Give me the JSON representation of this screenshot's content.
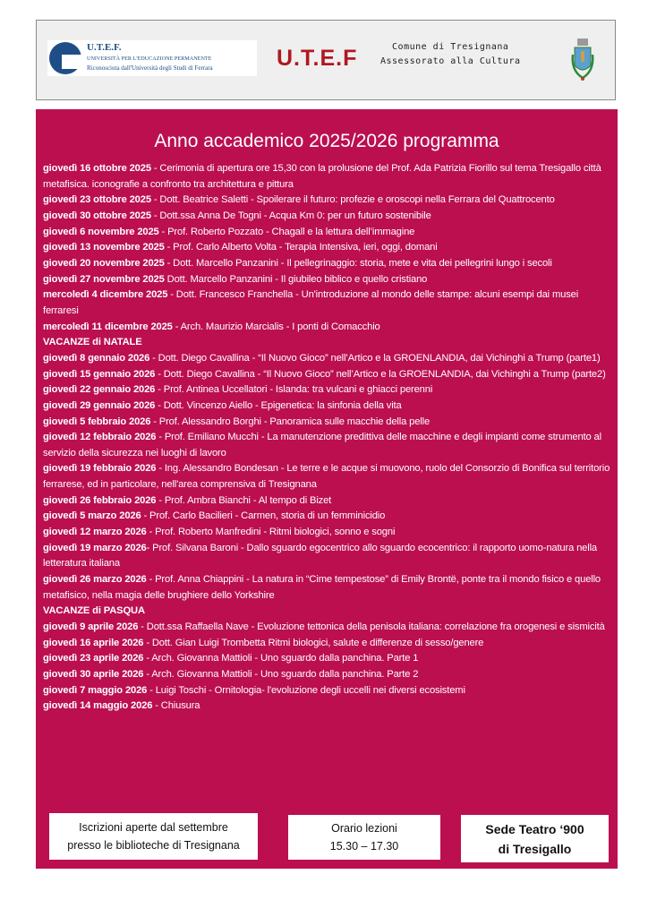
{
  "header": {
    "logo": {
      "abbr": "U.T.E.F.",
      "name": "UNIVERSITÀ PER L'EDUCAZIONE PERMANENTE",
      "subtitle": "Riconosciuta dall'Università degli Studi di Ferrara"
    },
    "brand": "U.T.E.F",
    "comune_line1": "Comune di Tresignana",
    "comune_line2": "Assessorato alla Cultura",
    "crest_icon": "municipal-crest-icon"
  },
  "main": {
    "background_color": "#bb0f50",
    "title": "Anno accademico 2025/2026 programma",
    "entries": [
      {
        "date": "giovedì 16 ottobre 2025",
        "text": " - Cerimonia di apertura ore 15,30 con la prolusione del Prof. Ada Patrizia Fiorillo sul tema Tresigallo città metafisica. iconografie a confronto tra architettura e pittura"
      },
      {
        "date": "giovedì 23 ottobre 2025",
        "text": " -  Dott. Beatrice Saletti - Spoilerare il futuro: profezie e oroscopi nella Ferrara del Quattrocento"
      },
      {
        "date": "giovedì 30 ottobre 2025",
        "text": " -  Dott.ssa Anna De Togni - Acqua Km 0: per un futuro sostenibile"
      },
      {
        "date": "giovedì 6 novembre 2025",
        "text": " -  Prof. Roberto Pozzato - Chagall e la lettura dell’immagine"
      },
      {
        "date": "giovedì 13 novembre 2025",
        "text": " -  Prof. Carlo Alberto Volta - Terapia Intensiva, ieri, oggi, domani"
      },
      {
        "date": "giovedì 20 novembre 2025",
        "text": " - Dott. Marcello Panzanini - Il pellegrinaggio: storia, mete e vita dei pellegrini lungo i secoli"
      },
      {
        "date": "giovedì 27 novembre 2025",
        "text": " Dott. Marcello Panzanini - Il giubileo biblico e quello cristiano"
      },
      {
        "date": "mercoledì 4 dicembre 2025",
        "text": " - Dott. Francesco Franchella - Un'introduzione al mondo delle stampe: alcuni esempi dai musei ferraresi"
      },
      {
        "date": "mercoledì 11 dicembre 2025",
        "text": " - Arch. Maurizio Marcialis - I ponti di Comacchio"
      },
      {
        "heading": "VACANZE di NATALE"
      },
      {
        "date": "giovedì 8 gennaio 2026",
        "text": " -  Dott. Diego Cavallina - “Il Nuovo Gioco” nell’Artico e la GROENLANDIA, dai Vichinghi a Trump (parte1)"
      },
      {
        "date": "giovedì 15 gennaio 2026",
        "text": " - Dott. Diego Cavallina - “Il Nuovo Gioco” nell’Artico e la GROENLANDIA, dai Vichinghi a Trump (parte2)"
      },
      {
        "date": "giovedì 22 gennaio 2026",
        "text": " - Prof. Antinea Uccellatori - Islanda: tra vulcani e ghiacci perenni"
      },
      {
        "date": "giovedì 29 gennaio 2026",
        "text": " - Dott. Vincenzo Aiello - Epigenetica: la sinfonia della vita"
      },
      {
        "date": "giovedì 5 febbraio 2026",
        "text": " - Prof. Alessandro Borghi - Panoramica sulle macchie della pelle"
      },
      {
        "date": "giovedì 12 febbraio 2026",
        "text": " -  Prof. Emiliano Mucchi - La manutenzione predittiva delle macchine e degli impianti come strumento al servizio della sicurezza nei luoghi di lavoro"
      },
      {
        "date": "giovedì 19 febbraio 2026",
        "text": " - Ing. Alessandro Bondesan - Le terre e le acque si muovono, ruolo del Consorzio di Bonifica sul territorio ferrarese, ed in particolare, nell'area comprensiva di Tresignana"
      },
      {
        "date": "giovedì 26 febbraio 2026",
        "text": " - Prof. Ambra Bianchi - Al tempo di Bizet"
      },
      {
        "date": "giovedì 5 marzo 2026",
        "text": " - Prof. Carlo Bacilieri - Carmen, storia di un femminicidio"
      },
      {
        "date": "giovedì 12 marzo 2026",
        "text": " - Prof. Roberto Manfredini - Ritmi biologici, sonno e sogni"
      },
      {
        "date": "giovedì 19 marzo 2026",
        "text": "- Prof. Silvana Baroni - Dallo sguardo egocentrico allo sguardo ecocentrico: il rapporto uomo-natura nella letteratura italiana"
      },
      {
        "date": "giovedì 26 marzo 2026",
        "text": " - Prof. Anna Chiappini - La natura in “Cime tempestose” di Emily Brontë, ponte tra il mondo fisico e quello metafisico, nella magia delle brughiere dello Yorkshire"
      },
      {
        "heading": "VACANZE di PASQUA"
      },
      {
        "date": "giovedì 9 aprile 2026",
        "text": " - Dott.ssa Raffaella Nave - Evoluzione tettonica della penisola italiana: correlazione fra orogenesi e sismicità"
      },
      {
        "date": "giovedì 16 aprile 2026",
        "text": " - Dott. Gian Luigi Trombetta Ritmi biologici, salute e differenze di sesso/genere"
      },
      {
        "date": "giovedì 23 aprile 2026",
        "text": " - Arch. Giovanna Mattioli - Uno sguardo dalla panchina. Parte 1"
      },
      {
        "date": "giovedì 30 aprile 2026",
        "text": " - Arch. Giovanna Mattioli - Uno sguardo dalla panchina. Parte 2"
      },
      {
        "date": "giovedì 7 maggio 2026",
        "text": " - Luigi Toschi - Ornitologia- l'evoluzione degli uccelli nei diversi ecosistemi"
      },
      {
        "date": "giovedì 14 maggio 2026",
        "text": " - Chiusura"
      }
    ]
  },
  "footer": {
    "registration_line1": "Iscrizioni aperte dal settembre",
    "registration_line2": "presso le biblioteche di Tresignana",
    "hours_line1": "Orario lezioni",
    "hours_line2": "15.30 – 17.30",
    "venue_line1": "Sede Teatro ‘900",
    "venue_line2": "di Tresigallo"
  }
}
